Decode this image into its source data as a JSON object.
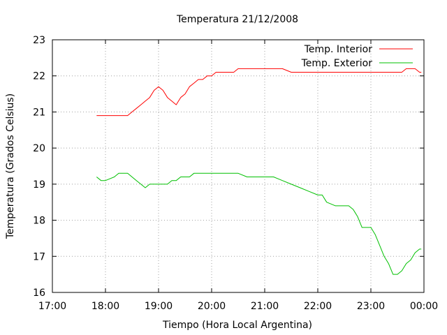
{
  "chart_data": {
    "type": "line",
    "title": "Temperatura 21/12/2008",
    "xlabel": "Tiempo (Hora Local Argentina)",
    "ylabel": "Temperatura (Grados Celsius)",
    "xlim": [
      "17:00",
      "00:00"
    ],
    "ylim": [
      16,
      23
    ],
    "x_ticks": [
      "17:00",
      "18:00",
      "19:00",
      "20:00",
      "21:00",
      "22:00",
      "23:00",
      "00:00"
    ],
    "y_ticks": [
      16,
      17,
      18,
      19,
      20,
      21,
      22,
      23
    ],
    "grid": true,
    "legend_position": "top-right",
    "series": [
      {
        "name": "Temp. Interior",
        "color": "#ff0000",
        "x": [
          "17:50",
          "18:00",
          "18:10",
          "18:20",
          "18:25",
          "18:30",
          "18:35",
          "18:40",
          "18:45",
          "18:50",
          "18:55",
          "19:00",
          "19:05",
          "19:10",
          "19:15",
          "19:20",
          "19:25",
          "19:30",
          "19:35",
          "19:40",
          "19:45",
          "19:50",
          "19:55",
          "20:00",
          "20:05",
          "20:10",
          "20:15",
          "20:20",
          "20:25",
          "20:30",
          "20:40",
          "20:50",
          "21:00",
          "21:10",
          "21:15",
          "21:20",
          "21:30",
          "21:40",
          "21:50",
          "22:00",
          "22:30",
          "23:00",
          "23:20",
          "23:30",
          "23:35",
          "23:40",
          "23:45",
          "23:50",
          "23:55",
          "23:57"
        ],
        "y": [
          20.9,
          20.9,
          20.9,
          20.9,
          20.9,
          21.0,
          21.1,
          21.2,
          21.3,
          21.4,
          21.6,
          21.7,
          21.6,
          21.4,
          21.3,
          21.2,
          21.4,
          21.5,
          21.7,
          21.8,
          21.9,
          21.9,
          22.0,
          22.0,
          22.1,
          22.1,
          22.1,
          22.1,
          22.1,
          22.2,
          22.2,
          22.2,
          22.2,
          22.2,
          22.2,
          22.2,
          22.1,
          22.1,
          22.1,
          22.1,
          22.1,
          22.1,
          22.1,
          22.1,
          22.1,
          22.2,
          22.2,
          22.2,
          22.1,
          22.1
        ]
      },
      {
        "name": "Temp. Exterior",
        "color": "#00c000",
        "x": [
          "17:50",
          "17:55",
          "18:00",
          "18:10",
          "18:15",
          "18:20",
          "18:25",
          "18:30",
          "18:35",
          "18:40",
          "18:45",
          "18:50",
          "18:55",
          "19:00",
          "19:10",
          "19:15",
          "19:20",
          "19:25",
          "19:30",
          "19:35",
          "19:40",
          "19:50",
          "20:00",
          "20:20",
          "20:30",
          "20:40",
          "21:00",
          "21:10",
          "21:20",
          "21:30",
          "21:40",
          "21:50",
          "22:00",
          "22:05",
          "22:10",
          "22:20",
          "22:30",
          "22:35",
          "22:40",
          "22:45",
          "22:50",
          "23:00",
          "23:05",
          "23:10",
          "23:15",
          "23:20",
          "23:25",
          "23:30",
          "23:35",
          "23:40",
          "23:45",
          "23:50",
          "23:55",
          "23:57"
        ],
        "y": [
          19.2,
          19.1,
          19.1,
          19.2,
          19.3,
          19.3,
          19.3,
          19.2,
          19.1,
          19.0,
          18.9,
          19.0,
          19.0,
          19.0,
          19.0,
          19.1,
          19.1,
          19.2,
          19.2,
          19.2,
          19.3,
          19.3,
          19.3,
          19.3,
          19.3,
          19.2,
          19.2,
          19.2,
          19.1,
          19.0,
          18.9,
          18.8,
          18.7,
          18.7,
          18.5,
          18.4,
          18.4,
          18.4,
          18.3,
          18.1,
          17.8,
          17.8,
          17.6,
          17.3,
          17.0,
          16.8,
          16.5,
          16.5,
          16.6,
          16.8,
          16.9,
          17.1,
          17.2,
          17.2
        ]
      }
    ]
  }
}
